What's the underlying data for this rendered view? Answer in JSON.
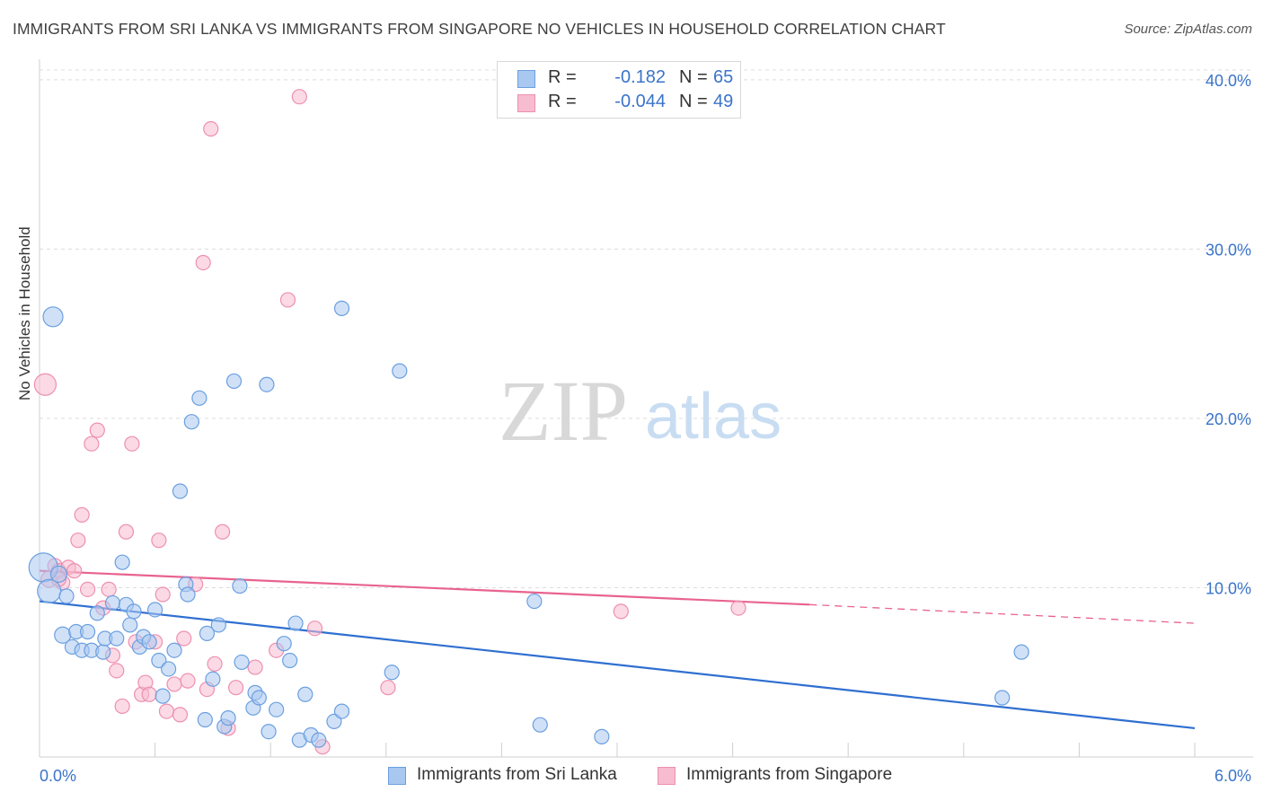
{
  "title": "IMMIGRANTS FROM SRI LANKA VS IMMIGRANTS FROM SINGAPORE NO VEHICLES IN HOUSEHOLD CORRELATION CHART",
  "source": "Source: ZipAtlas.com",
  "watermark": {
    "zip": "ZIP",
    "atlas": "atlas"
  },
  "legend": {
    "series1": {
      "r_label": "R =",
      "r_value": "-0.182",
      "n_label": "N =",
      "n_value": "65"
    },
    "series2": {
      "r_label": "R =",
      "r_value": "-0.044",
      "n_label": "N =",
      "n_value": "49"
    }
  },
  "colors": {
    "series1_fill": "#a9c8f0",
    "series1_stroke": "#6b9fe0",
    "series1_line": "#2f6fd0",
    "series2_fill": "#f7bcd0",
    "series2_stroke": "#ee8fb0",
    "series2_line": "#e8638f",
    "tick_text": "#3a74c9",
    "grid": "#dcdcdc"
  },
  "chart_data": {
    "type": "scatter",
    "title": "IMMIGRANTS FROM SRI LANKA VS IMMIGRANTS FROM SINGAPORE NO VEHICLES IN HOUSEHOLD CORRELATION CHART",
    "xlabel": "",
    "ylabel": "No Vehicles in Household",
    "xlim": [
      0,
      6
    ],
    "ylim": [
      0,
      41
    ],
    "x_tick_labels": [
      "0.0%",
      "6.0%"
    ],
    "y_ticks": [
      10,
      20,
      30,
      40
    ],
    "y_tick_labels": [
      "10.0%",
      "20.0%",
      "30.0%",
      "40.0%"
    ],
    "series": [
      {
        "name": "Immigrants from Sri Lanka",
        "trend": {
          "x0": 0,
          "y0": 9.2,
          "x1": 6,
          "y1": 1.7
        },
        "points": [
          {
            "x": 0.02,
            "y": 11.2,
            "s": 16
          },
          {
            "x": 0.05,
            "y": 9.8,
            "s": 13
          },
          {
            "x": 0.07,
            "y": 26.0,
            "s": 11
          },
          {
            "x": 0.1,
            "y": 10.8,
            "s": 9
          },
          {
            "x": 0.12,
            "y": 7.2,
            "s": 9
          },
          {
            "x": 0.14,
            "y": 9.5,
            "s": 8
          },
          {
            "x": 0.17,
            "y": 6.5,
            "s": 8
          },
          {
            "x": 0.19,
            "y": 7.4,
            "s": 8
          },
          {
            "x": 0.22,
            "y": 6.3,
            "s": 8
          },
          {
            "x": 0.25,
            "y": 7.4,
            "s": 8
          },
          {
            "x": 0.27,
            "y": 6.3,
            "s": 8
          },
          {
            "x": 0.3,
            "y": 8.5,
            "s": 8
          },
          {
            "x": 0.33,
            "y": 6.2,
            "s": 8
          },
          {
            "x": 0.34,
            "y": 7.0,
            "s": 8
          },
          {
            "x": 0.38,
            "y": 9.1,
            "s": 8
          },
          {
            "x": 0.4,
            "y": 7.0,
            "s": 8
          },
          {
            "x": 0.43,
            "y": 11.5,
            "s": 8
          },
          {
            "x": 0.45,
            "y": 9.0,
            "s": 8
          },
          {
            "x": 0.47,
            "y": 7.8,
            "s": 8
          },
          {
            "x": 0.49,
            "y": 8.6,
            "s": 8
          },
          {
            "x": 0.52,
            "y": 6.5,
            "s": 8
          },
          {
            "x": 0.54,
            "y": 7.1,
            "s": 8
          },
          {
            "x": 0.57,
            "y": 6.8,
            "s": 8
          },
          {
            "x": 0.6,
            "y": 8.7,
            "s": 8
          },
          {
            "x": 0.62,
            "y": 5.7,
            "s": 8
          },
          {
            "x": 0.64,
            "y": 3.6,
            "s": 8
          },
          {
            "x": 0.67,
            "y": 5.2,
            "s": 8
          },
          {
            "x": 0.7,
            "y": 6.3,
            "s": 8
          },
          {
            "x": 0.73,
            "y": 15.7,
            "s": 8
          },
          {
            "x": 0.76,
            "y": 10.2,
            "s": 8
          },
          {
            "x": 0.77,
            "y": 9.6,
            "s": 8
          },
          {
            "x": 0.79,
            "y": 19.8,
            "s": 8
          },
          {
            "x": 0.83,
            "y": 21.2,
            "s": 8
          },
          {
            "x": 0.86,
            "y": 2.2,
            "s": 8
          },
          {
            "x": 0.87,
            "y": 7.3,
            "s": 8
          },
          {
            "x": 0.9,
            "y": 4.6,
            "s": 8
          },
          {
            "x": 0.93,
            "y": 7.8,
            "s": 8
          },
          {
            "x": 0.96,
            "y": 1.8,
            "s": 8
          },
          {
            "x": 0.98,
            "y": 2.3,
            "s": 8
          },
          {
            "x": 1.01,
            "y": 22.2,
            "s": 8
          },
          {
            "x": 1.04,
            "y": 10.1,
            "s": 8
          },
          {
            "x": 1.05,
            "y": 5.6,
            "s": 8
          },
          {
            "x": 1.11,
            "y": 2.9,
            "s": 8
          },
          {
            "x": 1.12,
            "y": 3.8,
            "s": 8
          },
          {
            "x": 1.14,
            "y": 3.5,
            "s": 8
          },
          {
            "x": 1.18,
            "y": 22.0,
            "s": 8
          },
          {
            "x": 1.19,
            "y": 1.5,
            "s": 8
          },
          {
            "x": 1.23,
            "y": 2.8,
            "s": 8
          },
          {
            "x": 1.27,
            "y": 6.7,
            "s": 8
          },
          {
            "x": 1.3,
            "y": 5.7,
            "s": 8
          },
          {
            "x": 1.33,
            "y": 7.9,
            "s": 8
          },
          {
            "x": 1.35,
            "y": 1.0,
            "s": 8
          },
          {
            "x": 1.38,
            "y": 3.7,
            "s": 8
          },
          {
            "x": 1.41,
            "y": 1.3,
            "s": 8
          },
          {
            "x": 1.45,
            "y": 1.0,
            "s": 8
          },
          {
            "x": 1.53,
            "y": 2.1,
            "s": 8
          },
          {
            "x": 1.57,
            "y": 2.7,
            "s": 8
          },
          {
            "x": 1.57,
            "y": 26.5,
            "s": 8
          },
          {
            "x": 1.83,
            "y": 5.0,
            "s": 8
          },
          {
            "x": 1.87,
            "y": 22.8,
            "s": 8
          },
          {
            "x": 2.57,
            "y": 9.2,
            "s": 8
          },
          {
            "x": 2.6,
            "y": 1.9,
            "s": 8
          },
          {
            "x": 2.92,
            "y": 1.2,
            "s": 8
          },
          {
            "x": 5.0,
            "y": 3.5,
            "s": 8
          },
          {
            "x": 5.1,
            "y": 6.2,
            "s": 8
          }
        ]
      },
      {
        "name": "Immigrants from Singapore",
        "trend": {
          "x0": 0,
          "y0": 11.0,
          "x1": 4.0,
          "y1": 9.0,
          "dash_to_x": 6,
          "dash_to_y": 7.9
        },
        "points": [
          {
            "x": 0.03,
            "y": 22.0,
            "s": 12
          },
          {
            "x": 0.05,
            "y": 10.5,
            "s": 9
          },
          {
            "x": 0.08,
            "y": 11.3,
            "s": 8
          },
          {
            "x": 0.1,
            "y": 11.0,
            "s": 8
          },
          {
            "x": 0.12,
            "y": 10.3,
            "s": 8
          },
          {
            "x": 0.15,
            "y": 11.2,
            "s": 8
          },
          {
            "x": 0.18,
            "y": 11.0,
            "s": 8
          },
          {
            "x": 0.2,
            "y": 12.8,
            "s": 8
          },
          {
            "x": 0.22,
            "y": 14.3,
            "s": 8
          },
          {
            "x": 0.25,
            "y": 9.9,
            "s": 8
          },
          {
            "x": 0.27,
            "y": 18.5,
            "s": 8
          },
          {
            "x": 0.3,
            "y": 19.3,
            "s": 8
          },
          {
            "x": 0.33,
            "y": 8.8,
            "s": 8
          },
          {
            "x": 0.36,
            "y": 9.9,
            "s": 8
          },
          {
            "x": 0.38,
            "y": 6.0,
            "s": 8
          },
          {
            "x": 0.4,
            "y": 5.1,
            "s": 8
          },
          {
            "x": 0.43,
            "y": 3.0,
            "s": 8
          },
          {
            "x": 0.45,
            "y": 13.3,
            "s": 8
          },
          {
            "x": 0.48,
            "y": 18.5,
            "s": 8
          },
          {
            "x": 0.5,
            "y": 6.8,
            "s": 8
          },
          {
            "x": 0.53,
            "y": 3.7,
            "s": 8
          },
          {
            "x": 0.55,
            "y": 4.4,
            "s": 8
          },
          {
            "x": 0.57,
            "y": 3.7,
            "s": 8
          },
          {
            "x": 0.6,
            "y": 6.8,
            "s": 8
          },
          {
            "x": 0.62,
            "y": 12.8,
            "s": 8
          },
          {
            "x": 0.64,
            "y": 9.6,
            "s": 8
          },
          {
            "x": 0.66,
            "y": 2.7,
            "s": 8
          },
          {
            "x": 0.7,
            "y": 4.3,
            "s": 8
          },
          {
            "x": 0.73,
            "y": 2.5,
            "s": 8
          },
          {
            "x": 0.75,
            "y": 7.0,
            "s": 8
          },
          {
            "x": 0.77,
            "y": 4.5,
            "s": 8
          },
          {
            "x": 0.81,
            "y": 10.2,
            "s": 8
          },
          {
            "x": 0.85,
            "y": 29.2,
            "s": 8
          },
          {
            "x": 0.87,
            "y": 4.0,
            "s": 8
          },
          {
            "x": 0.89,
            "y": 37.1,
            "s": 8
          },
          {
            "x": 0.91,
            "y": 5.5,
            "s": 8
          },
          {
            "x": 0.95,
            "y": 13.3,
            "s": 8
          },
          {
            "x": 0.98,
            "y": 1.7,
            "s": 8
          },
          {
            "x": 1.02,
            "y": 4.1,
            "s": 8
          },
          {
            "x": 1.12,
            "y": 5.3,
            "s": 8
          },
          {
            "x": 1.23,
            "y": 6.3,
            "s": 8
          },
          {
            "x": 1.29,
            "y": 27.0,
            "s": 8
          },
          {
            "x": 1.35,
            "y": 39.0,
            "s": 8
          },
          {
            "x": 1.43,
            "y": 7.6,
            "s": 8
          },
          {
            "x": 1.47,
            "y": 0.6,
            "s": 8
          },
          {
            "x": 1.81,
            "y": 4.1,
            "s": 8
          },
          {
            "x": 3.02,
            "y": 8.6,
            "s": 8
          },
          {
            "x": 3.63,
            "y": 8.8,
            "s": 8
          },
          {
            "x": 0.1,
            "y": 10.5,
            "s": 8
          }
        ]
      }
    ]
  }
}
